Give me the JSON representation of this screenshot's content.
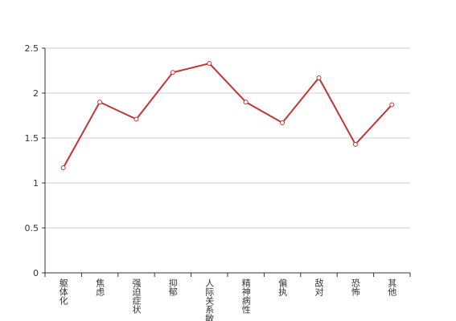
{
  "chart_data": {
    "type": "line",
    "categories": [
      "躯体化",
      "焦虑",
      "强迫症状",
      "抑郁",
      "人际关系敏感",
      "精神病性",
      "偏执",
      "敌对",
      "恐怖",
      "其他"
    ],
    "values": [
      1.17,
      1.9,
      1.71,
      2.23,
      2.33,
      1.9,
      1.67,
      2.17,
      1.43,
      1.87
    ],
    "color": "#c23531",
    "ylim": [
      0,
      2.5
    ],
    "yticks": [
      0,
      0.5,
      1,
      1.5,
      2,
      2.5
    ],
    "grid": true
  }
}
